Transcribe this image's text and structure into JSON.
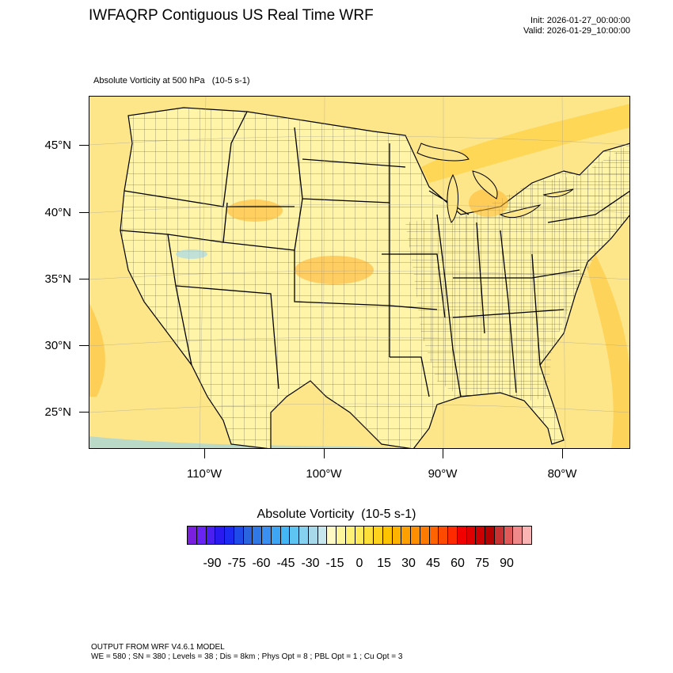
{
  "header": {
    "title": "IWFAQRP Contiguous US Real Time WRF",
    "init": "Init: 2026-01-27_00:00:00",
    "valid": "Valid: 2026-01-29_10:00:00",
    "subtitle": "Absolute Vorticity at 500 hPa   (10-5 s-1)"
  },
  "map": {
    "lat_labels": [
      "45°N",
      "40°N",
      "35°N",
      "30°N",
      "25°N"
    ],
    "lon_labels": [
      "110°W",
      "100°W",
      "90°W",
      "80°W"
    ],
    "ocean_color": "#fde68a",
    "land_color": "#fff4a8",
    "border_color": "#000000"
  },
  "legend": {
    "title": "Absolute Vorticity  (10-5 s-1)",
    "labels": [
      "-90",
      "-75",
      "-60",
      "-45",
      "-30",
      "-15",
      "0",
      "15",
      "30",
      "45",
      "60",
      "75",
      "90"
    ],
    "colors": [
      "#7a1fe0",
      "#6a23f5",
      "#4b1ff0",
      "#2a1aef",
      "#1d2bf2",
      "#1f4be8",
      "#2a64df",
      "#3078e6",
      "#3a8ff0",
      "#3ea5f5",
      "#44b5f5",
      "#5ec4f2",
      "#86d0f0",
      "#a8d9ea",
      "#c8e6ee",
      "#fff9c4",
      "#fff59d",
      "#fff176",
      "#ffeb5a",
      "#ffe03a",
      "#ffd21e",
      "#ffc400",
      "#ffb300",
      "#ffa000",
      "#ff8f00",
      "#ff7a00",
      "#ff6400",
      "#ff4a00",
      "#ff2a00",
      "#f20000",
      "#e00000",
      "#cc0000",
      "#b40000",
      "#c83232",
      "#e05a5a",
      "#f08a8a",
      "#fab4b4"
    ]
  },
  "footer": {
    "line1": "OUTPUT FROM WRF V4.6.1 MODEL",
    "line2": "WE = 580 ; SN = 380 ; Levels = 38 ; Dis = 8km ; Phys Opt = 8 ; PBL Opt = 1 ; Cu Opt = 3"
  }
}
